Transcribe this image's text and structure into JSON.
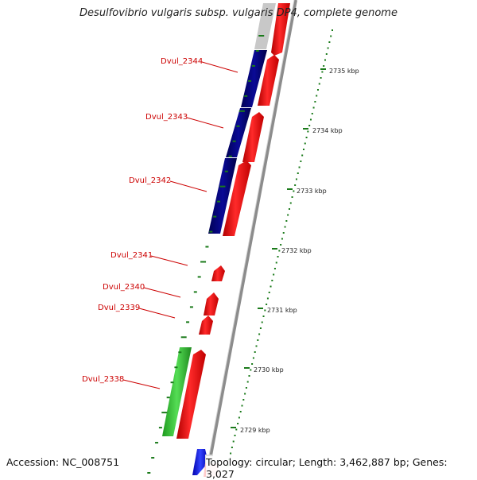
{
  "title": "Desulfovibrio vulgaris subsp. vulgaris DP4, complete genome",
  "accession": "Accession: NC_008751",
  "topology": "Topology: circular; Length: 3,462,887 bp; Genes: 3,027",
  "colors": {
    "forward_cds": "#ff0000",
    "blue_track": "#000080",
    "green_track": "#33cc33",
    "backbone": "#8c8c8c",
    "gene_label": "#cc0000",
    "tick": "#1a7a1a"
  },
  "scale_labels": [
    "2735 kbp",
    "2734 kbp",
    "2733 kbp",
    "2732 kbp",
    "2731 kbp",
    "2730 kbp",
    "2729 kbp"
  ],
  "gene_labels": [
    "Dvul_2344",
    "Dvul_2343",
    "Dvul_2342",
    "Dvul_2341",
    "Dvul_2340",
    "Dvul_2339",
    "Dvul_2338"
  ]
}
